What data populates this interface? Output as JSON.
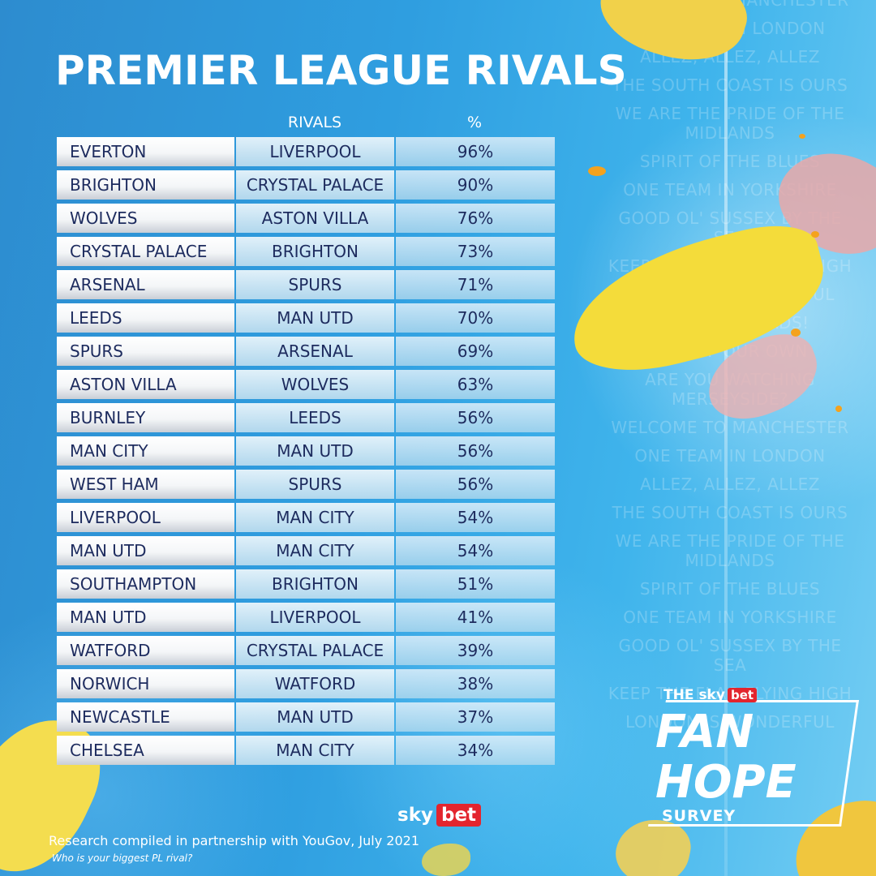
{
  "title": "PREMIER LEAGUE RIVALS",
  "columns": {
    "team": "",
    "rivals": "RIVALS",
    "percent": "%"
  },
  "rows": [
    {
      "team": "EVERTON",
      "rival": "LIVERPOOL",
      "percent": "96%"
    },
    {
      "team": "BRIGHTON",
      "rival": "CRYSTAL PALACE",
      "percent": "90%"
    },
    {
      "team": "WOLVES",
      "rival": "ASTON VILLA",
      "percent": "76%"
    },
    {
      "team": "CRYSTAL PALACE",
      "rival": "BRIGHTON",
      "percent": "73%"
    },
    {
      "team": "ARSENAL",
      "rival": "SPURS",
      "percent": "71%"
    },
    {
      "team": "LEEDS",
      "rival": "MAN UTD",
      "percent": "70%"
    },
    {
      "team": "SPURS",
      "rival": "ARSENAL",
      "percent": "69%"
    },
    {
      "team": "ASTON VILLA",
      "rival": "WOLVES",
      "percent": "63%"
    },
    {
      "team": "BURNLEY",
      "rival": "LEEDS",
      "percent": "56%"
    },
    {
      "team": "MAN CITY",
      "rival": "MAN UTD",
      "percent": "56%"
    },
    {
      "team": "WEST HAM",
      "rival": "SPURS",
      "percent": "56%"
    },
    {
      "team": "LIVERPOOL",
      "rival": "MAN CITY",
      "percent": "54%"
    },
    {
      "team": "MAN UTD",
      "rival": "MAN CITY",
      "percent": "54%"
    },
    {
      "team": "SOUTHAMPTON",
      "rival": "BRIGHTON",
      "percent": "51%"
    },
    {
      "team": "MAN UTD",
      "rival": "LIVERPOOL",
      "percent": "41%"
    },
    {
      "team": "WATFORD",
      "rival": "CRYSTAL PALACE",
      "percent": "39%"
    },
    {
      "team": "NORWICH",
      "rival": "WATFORD",
      "percent": "38%"
    },
    {
      "team": "NEWCASTLE",
      "rival": "MAN UTD",
      "percent": "37%"
    },
    {
      "team": "CHELSEA",
      "rival": "MAN CITY",
      "percent": "34%"
    }
  ],
  "background_chants": [
    "WELCOME TO MANCHESTER",
    "ONE TEAM IN LONDON",
    "ALLEZ, ALLEZ, ALLEZ",
    "THE SOUTH COAST IS OURS",
    "WE ARE THE PRIDE OF THE MIDLANDS",
    "SPIRIT OF THE BLUES",
    "ONE TEAM IN YORKSHIRE",
    "GOOD OL' SUSSEX BY THE SEA",
    "KEEP THE FLAG FLYING HIGH",
    "LONDON IS WONDERFUL",
    "HOWAY THE LADS!",
    "ONE OF OUR OWN",
    "ARE YOU WATCHING MERSEYSIDE?",
    "WELCOME TO MANCHESTER",
    "ONE TEAM IN LONDON",
    "ALLEZ, ALLEZ, ALLEZ",
    "THE SOUTH COAST IS OURS",
    "WE ARE THE PRIDE OF THE MIDLANDS",
    "SPIRIT OF THE BLUES",
    "ONE TEAM IN YORKSHIRE",
    "GOOD OL' SUSSEX BY THE SEA",
    "KEEP THE FLAG FLYING HIGH",
    "LONDON IS WONDERFUL"
  ],
  "logo": {
    "sky": "sky",
    "bet": "bet"
  },
  "badge": {
    "the": "THE",
    "sky": "sky",
    "bet": "bet",
    "fan": "FAN",
    "hope": "HOPE",
    "survey": "SURVEY"
  },
  "footnote": "Research compiled in partnership with YouGov, July 2021",
  "question": "Who is your biggest PL rival?",
  "colors": {
    "background": "#2f9ee0",
    "team_text": "#1d2b5e",
    "brand_red": "#e3252e",
    "petal_yellow": "#f4dc3a"
  }
}
